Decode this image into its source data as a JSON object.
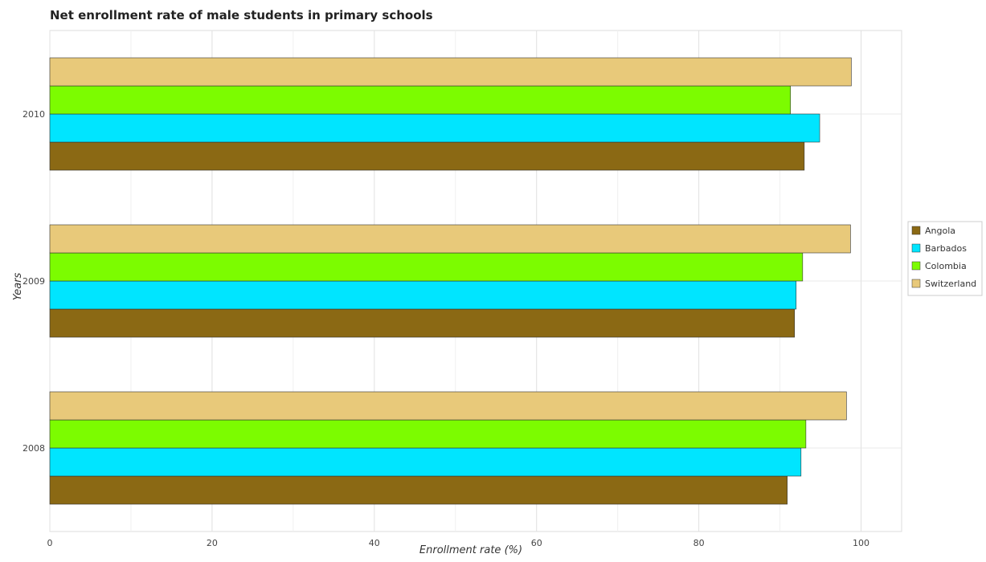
{
  "chart_data": {
    "type": "bar",
    "orientation": "horizontal",
    "title": "Net enrollment rate of male students in primary schools",
    "xlabel": "Enrollment rate (%)",
    "ylabel": "Years",
    "xlim": [
      0,
      105
    ],
    "xticks": [
      0,
      20,
      40,
      60,
      80,
      100
    ],
    "grid": true,
    "legend_position": "right",
    "categories": [
      "2008",
      "2009",
      "2010"
    ],
    "series": [
      {
        "name": "Angola",
        "color": "#8b6914",
        "values": [
          90.9,
          91.8,
          93.0
        ]
      },
      {
        "name": "Barbados",
        "color": "#00e5ff",
        "values": [
          92.6,
          92.0,
          94.9
        ]
      },
      {
        "name": "Colombia",
        "color": "#7cfc00",
        "values": [
          93.2,
          92.8,
          91.3
        ]
      },
      {
        "name": "Switzerland",
        "color": "#e8c97a",
        "values": [
          98.2,
          98.7,
          98.8
        ]
      }
    ]
  }
}
